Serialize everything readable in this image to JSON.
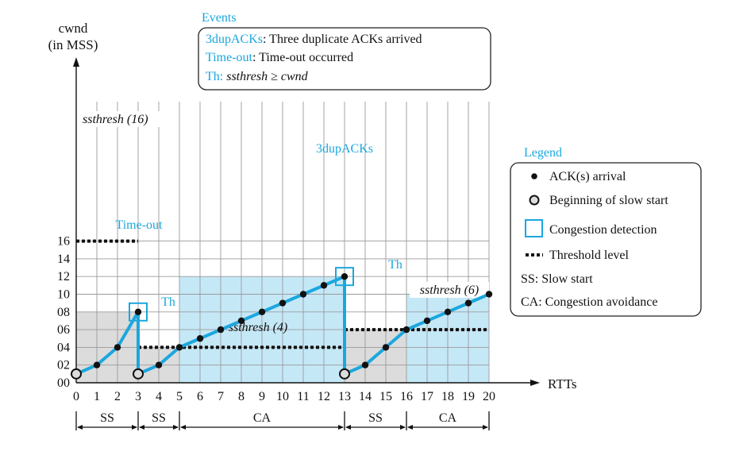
{
  "chart_data": {
    "type": "line",
    "ylabel_line1": "cwnd",
    "ylabel_line2": "(in MSS)",
    "xlabel": "RTTs",
    "x_ticks": [
      "0",
      "1",
      "2",
      "3",
      "4",
      "5",
      "6",
      "7",
      "8",
      "9",
      "10",
      "11",
      "12",
      "13",
      "14",
      "15",
      "16",
      "17",
      "18",
      "19",
      "20"
    ],
    "y_ticks": [
      "00",
      "02",
      "04",
      "06",
      "08",
      "10",
      "12",
      "14",
      "16"
    ],
    "xlim": [
      0,
      20
    ],
    "ylim": [
      0,
      16
    ],
    "grid": true,
    "series": [
      {
        "x": [
          0,
          1,
          2,
          3,
          3,
          4,
          5,
          6,
          7,
          8,
          9,
          10,
          11,
          12,
          13,
          13,
          14,
          15,
          16,
          17,
          18,
          19,
          20
        ],
        "y": [
          1,
          2,
          4,
          8,
          1,
          2,
          4,
          5,
          6,
          7,
          8,
          9,
          10,
          11,
          12,
          1,
          2,
          4,
          6,
          7,
          8,
          9,
          10
        ],
        "color": "#1ba7de"
      }
    ],
    "slow_start_points": [
      [
        0,
        1
      ],
      [
        3,
        1
      ],
      [
        13,
        1
      ]
    ],
    "congestion_detection_points": [
      [
        3,
        8
      ],
      [
        13,
        12
      ]
    ],
    "threshold_lines": [
      {
        "x": [
          0,
          3
        ],
        "y": 16,
        "label": "ssthresh (16)"
      },
      {
        "x": [
          3,
          13
        ],
        "y": 4,
        "label": "ssthresh (4)"
      },
      {
        "x": [
          13,
          20
        ],
        "y": 6,
        "label": "ssthresh (6)"
      }
    ],
    "shaded_regions": [
      {
        "x": [
          0,
          3
        ],
        "y": [
          0,
          8
        ],
        "color": "#dcdcdc"
      },
      {
        "x": [
          3,
          5
        ],
        "y": [
          0,
          4
        ],
        "color": "#dcdcdc"
      },
      {
        "x": [
          5,
          13
        ],
        "y": [
          0,
          12
        ],
        "color": "#c5e8f7"
      },
      {
        "x": [
          13,
          16
        ],
        "y": [
          0,
          6
        ],
        "color": "#dcdcdc"
      },
      {
        "x": [
          16,
          20
        ],
        "y": [
          0,
          10
        ],
        "color": "#c5e8f7"
      }
    ],
    "annotations": [
      {
        "text": "Time-out",
        "x": 3,
        "y": 8
      },
      {
        "text": "3dupACKs",
        "x": 13,
        "y": 12
      },
      {
        "text": "Th",
        "x": 5,
        "y": 4
      },
      {
        "text": "Th",
        "x": 16,
        "y": 6
      }
    ],
    "phases": [
      {
        "label": "SS",
        "x": [
          0,
          3
        ]
      },
      {
        "label": "SS",
        "x": [
          3,
          5
        ]
      },
      {
        "label": "CA",
        "x": [
          5,
          13
        ]
      },
      {
        "label": "SS",
        "x": [
          13,
          16
        ]
      },
      {
        "label": "CA",
        "x": [
          16,
          20
        ]
      }
    ],
    "events_box": {
      "title": "Events",
      "lines": [
        {
          "key": "3dupACKs",
          "text": ": Three duplicate ACKs arrived"
        },
        {
          "key": "Time-out",
          "text": ": Time-out occurred"
        },
        {
          "key": "Th:",
          "text": " ssthresh ≥  cwnd"
        }
      ]
    },
    "legend": {
      "title": "Legend",
      "items": [
        {
          "marker": "dot",
          "label": "ACK(s) arrival"
        },
        {
          "marker": "ring",
          "label": "Beginning of slow start"
        },
        {
          "marker": "square",
          "label": "Congestion detection"
        },
        {
          "marker": "dash",
          "label": "Threshold level"
        },
        {
          "marker": "none",
          "label": "SS: Slow start"
        },
        {
          "marker": "none",
          "label": "CA: Congestion avoidance"
        }
      ]
    },
    "colors": {
      "line": "#1ba7de",
      "grid": "#9a9a9a",
      "gray_fill": "#dcdcdc",
      "blue_fill": "#c5e8f7",
      "marker": "#111111"
    }
  }
}
